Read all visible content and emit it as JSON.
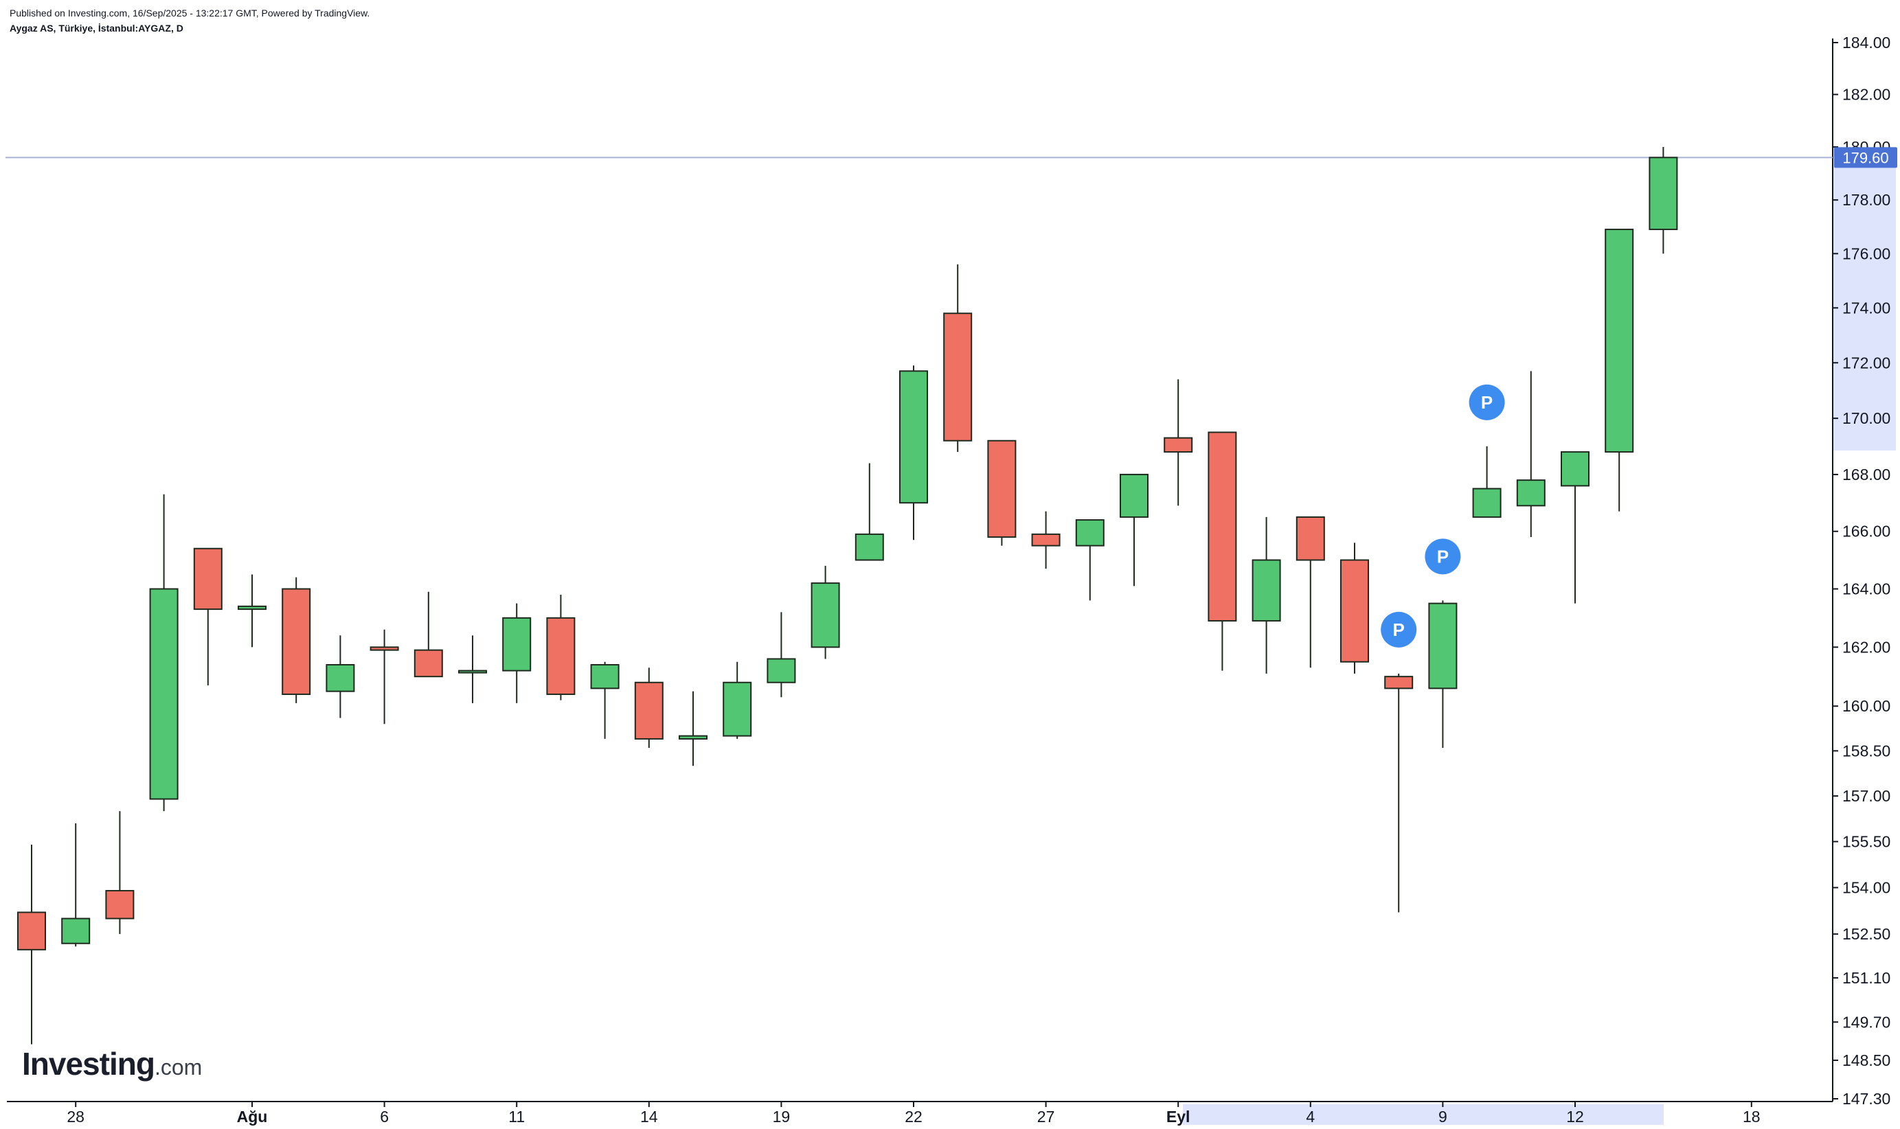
{
  "header": {
    "published": "Published on Investing.com, 16/Sep/2025 - 13:22:17 GMT, Powered by TradingView.",
    "symbol": "Aygaz AS, Türkiye, İstanbul:AYGAZ, D"
  },
  "logo": {
    "brand": "Investing",
    "suffix": ".com"
  },
  "colors": {
    "up": "#53c673",
    "down": "#ef7163",
    "wick": "#1f2a1f",
    "price_line": "#aab0d6",
    "price_label_bg": "#4a72d4",
    "axis_highlight": "#dde4fb",
    "marker": "#3d8df0"
  },
  "chart_data": {
    "type": "candlestick",
    "title": "",
    "xlabel": "",
    "ylabel": "",
    "y_ticks": [
      "184.00",
      "182.00",
      "180.00",
      "178.00",
      "176.00",
      "174.00",
      "172.00",
      "170.00",
      "168.00",
      "166.00",
      "164.00",
      "162.00",
      "160.00",
      "158.50",
      "157.00",
      "155.50",
      "154.00",
      "152.50",
      "151.10",
      "149.70",
      "148.50",
      "147.30"
    ],
    "y_scale": "log",
    "x_ticks": [
      {
        "label": "28",
        "bar": 1,
        "month": false
      },
      {
        "label": "Ağu",
        "bar": 5,
        "month": true
      },
      {
        "label": "6",
        "bar": 8,
        "month": false
      },
      {
        "label": "11",
        "bar": 11,
        "month": false
      },
      {
        "label": "14",
        "bar": 14,
        "month": false
      },
      {
        "label": "19",
        "bar": 17,
        "month": false
      },
      {
        "label": "22",
        "bar": 20,
        "month": false
      },
      {
        "label": "27",
        "bar": 23,
        "month": false
      },
      {
        "label": "Eyl",
        "bar": 26,
        "month": true
      },
      {
        "label": "4",
        "bar": 29,
        "month": false
      },
      {
        "label": "9",
        "bar": 32,
        "month": false
      },
      {
        "label": "12",
        "bar": 35,
        "month": false
      },
      {
        "label": "18",
        "bar": 39,
        "month": false
      }
    ],
    "current_price": "179.60",
    "grid": false,
    "series": [
      {
        "candles": [
          {
            "o": 153.2,
            "h": 155.4,
            "l": 149.0,
            "c": 152.0
          },
          {
            "o": 152.2,
            "h": 156.1,
            "l": 152.1,
            "c": 153.0
          },
          {
            "o": 153.9,
            "h": 156.5,
            "l": 152.5,
            "c": 153.0
          },
          {
            "o": 156.9,
            "h": 167.3,
            "l": 156.5,
            "c": 164.0
          },
          {
            "o": 165.4,
            "h": 165.4,
            "l": 160.7,
            "c": 163.3
          },
          {
            "o": 163.3,
            "h": 164.5,
            "l": 162.0,
            "c": 163.4
          },
          {
            "o": 164.0,
            "h": 164.4,
            "l": 160.1,
            "c": 160.4
          },
          {
            "o": 160.5,
            "h": 162.4,
            "l": 159.6,
            "c": 161.4
          },
          {
            "o": 162.0,
            "h": 162.6,
            "l": 159.4,
            "c": 161.9
          },
          {
            "o": 161.9,
            "h": 163.9,
            "l": 161.0,
            "c": 161.0
          },
          {
            "o": 161.2,
            "h": 162.4,
            "l": 160.1,
            "c": 161.2
          },
          {
            "o": 161.2,
            "h": 163.5,
            "l": 160.1,
            "c": 163.0
          },
          {
            "o": 163.0,
            "h": 163.8,
            "l": 160.2,
            "c": 160.4
          },
          {
            "o": 160.6,
            "h": 161.5,
            "l": 158.9,
            "c": 161.4
          },
          {
            "o": 160.8,
            "h": 161.3,
            "l": 158.6,
            "c": 158.9
          },
          {
            "o": 158.9,
            "h": 160.5,
            "l": 158.0,
            "c": 159.0
          },
          {
            "o": 159.0,
            "h": 161.5,
            "l": 158.9,
            "c": 160.8
          },
          {
            "o": 160.8,
            "h": 163.2,
            "l": 160.3,
            "c": 161.6
          },
          {
            "o": 162.0,
            "h": 164.8,
            "l": 161.6,
            "c": 164.2
          },
          {
            "o": 165.0,
            "h": 168.4,
            "l": 165.0,
            "c": 165.9
          },
          {
            "o": 167.0,
            "h": 171.9,
            "l": 165.7,
            "c": 171.7
          },
          {
            "o": 173.8,
            "h": 175.6,
            "l": 168.8,
            "c": 169.2
          },
          {
            "o": 169.2,
            "h": 169.2,
            "l": 165.5,
            "c": 165.8
          },
          {
            "o": 165.9,
            "h": 166.7,
            "l": 164.7,
            "c": 165.5
          },
          {
            "o": 165.5,
            "h": 166.4,
            "l": 163.6,
            "c": 166.4
          },
          {
            "o": 166.5,
            "h": 168.0,
            "l": 164.1,
            "c": 168.0
          },
          {
            "o": 169.3,
            "h": 171.4,
            "l": 166.9,
            "c": 168.8
          },
          {
            "o": 169.5,
            "h": 169.5,
            "l": 161.2,
            "c": 162.9
          },
          {
            "o": 162.9,
            "h": 166.5,
            "l": 161.1,
            "c": 165.0
          },
          {
            "o": 166.5,
            "h": 166.5,
            "l": 161.3,
            "c": 165.0
          },
          {
            "o": 165.0,
            "h": 165.6,
            "l": 161.1,
            "c": 161.5
          },
          {
            "o": 161.0,
            "h": 161.1,
            "l": 153.2,
            "c": 160.6
          },
          {
            "o": 160.6,
            "h": 163.6,
            "l": 158.6,
            "c": 163.5
          },
          {
            "o": 166.5,
            "h": 169.0,
            "l": 166.5,
            "c": 167.5
          },
          {
            "o": 166.9,
            "h": 171.7,
            "l": 165.8,
            "c": 167.8
          },
          {
            "o": 167.6,
            "h": 168.8,
            "l": 163.5,
            "c": 168.8
          },
          {
            "o": 168.8,
            "h": 176.9,
            "l": 166.7,
            "c": 176.9
          },
          {
            "o": 176.9,
            "h": 180.0,
            "l": 176.0,
            "c": 179.6
          }
        ]
      }
    ],
    "markers": [
      {
        "bar": 31,
        "text": "P"
      },
      {
        "bar": 32,
        "text": "P"
      },
      {
        "bar": 33,
        "text": "P"
      }
    ]
  }
}
